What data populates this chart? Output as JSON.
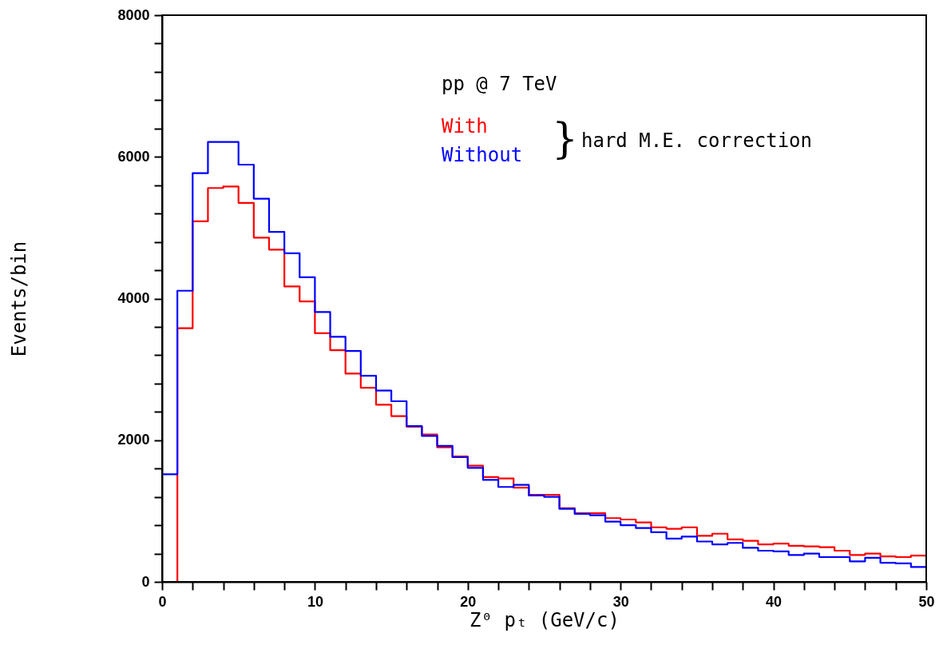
{
  "chart_data": {
    "type": "histogram",
    "xlabel": "Z⁰ pₜ (GeV/c)",
    "ylabel": "Events/bin",
    "bins": [
      0,
      1,
      2,
      3,
      4,
      5,
      6,
      7,
      8,
      9,
      10,
      11,
      12,
      13,
      14,
      15,
      16,
      17,
      18,
      19,
      20,
      21,
      22,
      23,
      24,
      25,
      26,
      27,
      28,
      29,
      30,
      31,
      32,
      33,
      34,
      35,
      36,
      37,
      38,
      39,
      40,
      41,
      42,
      43,
      44,
      45,
      46,
      47,
      48,
      49,
      50
    ],
    "series": [
      {
        "name": "With",
        "color": "#ff0000",
        "values": [
          0,
          3580,
          5090,
          5560,
          5580,
          5350,
          4860,
          4690,
          4170,
          3960,
          3510,
          3270,
          2940,
          2740,
          2500,
          2340,
          2190,
          2080,
          1900,
          1770,
          1640,
          1480,
          1460,
          1330,
          1230,
          1230,
          1040,
          970,
          970,
          900,
          880,
          840,
          770,
          750,
          770,
          650,
          680,
          600,
          580,
          530,
          540,
          510,
          500,
          490,
          440,
          380,
          400,
          360,
          350,
          370
        ]
      },
      {
        "name": "Without",
        "color": "#0000ff",
        "values": [
          1520,
          4110,
          5770,
          6210,
          6210,
          5890,
          5410,
          4940,
          4640,
          4300,
          3810,
          3460,
          3260,
          2910,
          2700,
          2550,
          2200,
          2060,
          1920,
          1760,
          1610,
          1440,
          1340,
          1370,
          1220,
          1200,
          1030,
          960,
          940,
          850,
          800,
          760,
          700,
          610,
          640,
          570,
          530,
          550,
          480,
          440,
          430,
          380,
          400,
          350,
          350,
          290,
          340,
          270,
          260,
          210
        ]
      }
    ],
    "xlim": [
      0,
      50
    ],
    "ylim": [
      0,
      8000
    ],
    "xticks": [
      0,
      {
        "value": 2,
        "label": null
      },
      {
        "value": 4,
        "label": null
      },
      {
        "value": 6,
        "label": null
      },
      {
        "value": 8,
        "label": null
      },
      10,
      {
        "value": 12,
        "label": null
      },
      {
        "value": 14,
        "label": null
      },
      {
        "value": 16,
        "label": null
      },
      {
        "value": 18,
        "label": null
      },
      20,
      {
        "value": 22,
        "label": null
      },
      {
        "value": 24,
        "label": null
      },
      {
        "value": 26,
        "label": null
      },
      {
        "value": 28,
        "label": null
      },
      30,
      {
        "value": 32,
        "label": null
      },
      {
        "value": 34,
        "label": null
      },
      {
        "value": 36,
        "label": null
      },
      {
        "value": 38,
        "label": null
      },
      40,
      {
        "value": 42,
        "label": null
      },
      {
        "value": 44,
        "label": null
      },
      {
        "value": 46,
        "label": null
      },
      {
        "value": 48,
        "label": null
      },
      50
    ],
    "yticks": [
      0,
      {
        "value": 400,
        "label": null
      },
      {
        "value": 800,
        "label": null
      },
      {
        "value": 1200,
        "label": null
      },
      {
        "value": 1600,
        "label": null
      },
      2000,
      {
        "value": 2400,
        "label": null
      },
      {
        "value": 2800,
        "label": null
      },
      {
        "value": 3200,
        "label": null
      },
      {
        "value": 3600,
        "label": null
      },
      4000,
      {
        "value": 4400,
        "label": null
      },
      {
        "value": 4800,
        "label": null
      },
      {
        "value": 5200,
        "label": null
      },
      {
        "value": 5600,
        "label": null
      },
      6000,
      {
        "value": 6400,
        "label": null
      },
      {
        "value": 6800,
        "label": null
      },
      {
        "value": 7200,
        "label": null
      },
      {
        "value": 7600,
        "label": null
      },
      8000
    ],
    "annotations": [
      "pp @ 7 TeV",
      "hard M.E. correction",
      "}"
    ],
    "legend": "top",
    "grid": false
  }
}
